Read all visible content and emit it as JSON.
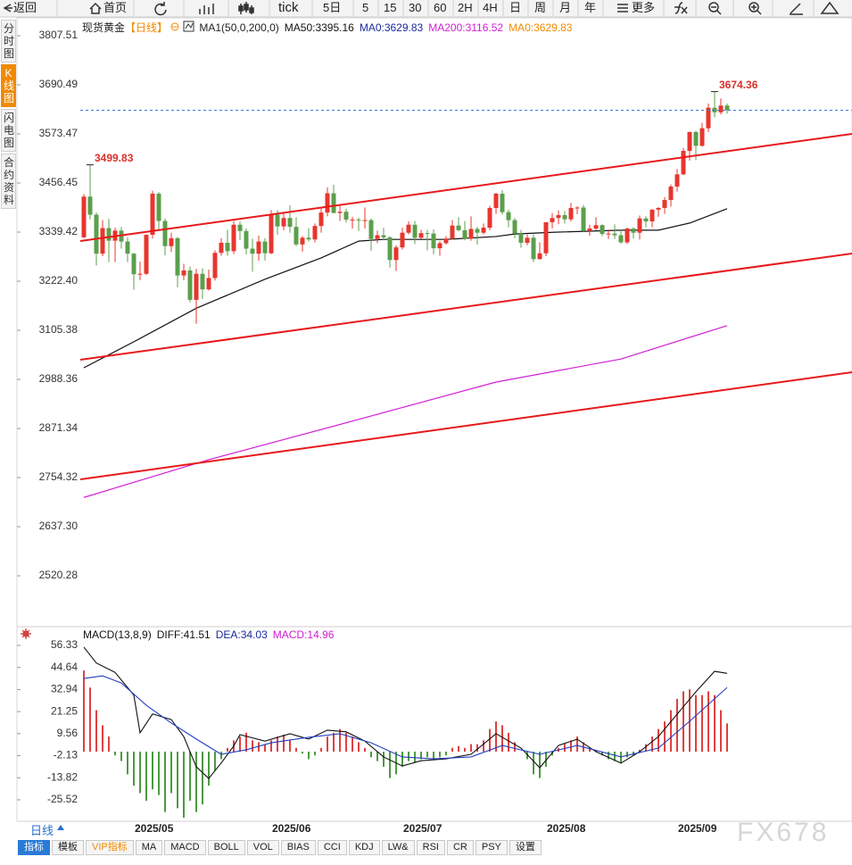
{
  "toolbar": [
    "返回",
    "首页",
    "tick",
    "5日",
    "5",
    "15",
    "30",
    "60",
    "2H",
    "4H",
    "日",
    "周",
    "月",
    "年",
    "更多"
  ],
  "sidebar": [
    "分时图",
    "K线图",
    "闪电图",
    "合约资料"
  ],
  "period_button": "日线",
  "bottom_tabs": [
    "指标",
    "模板",
    "VIP指标",
    "MA",
    "MACD",
    "BOLL",
    "VOL",
    "BIAS",
    "CCI",
    "KDJ",
    "LW&",
    "RSI",
    "CR",
    "PSY",
    "设置"
  ],
  "watermark": "FX678",
  "chart_data": [
    {
      "type": "candlestick",
      "title": "现货黄金",
      "subtitle": "【日线】",
      "legend": [
        {
          "label": "MA1(50,0,200,0)",
          "color": "#222222"
        },
        {
          "label": "MA50:3395.16",
          "color": "#111111"
        },
        {
          "label": "MA0:3629.83",
          "color": "#1a2a9a"
        },
        {
          "label": "MA200:3116.52",
          "color": "#d020d0"
        },
        {
          "label": "MA0:3629.83",
          "color": "#f08a00"
        }
      ],
      "categories": [
        null,
        null,
        null,
        null,
        null,
        null,
        null,
        null,
        "2025/05",
        null,
        null,
        null,
        null,
        null,
        null,
        null,
        null,
        null,
        null,
        null,
        null,
        null,
        null,
        null,
        null,
        null,
        null,
        null,
        null,
        null,
        "2025/06",
        null,
        null,
        null,
        null,
        null,
        null,
        null,
        null,
        null,
        null,
        null,
        null,
        null,
        null,
        null,
        null,
        null,
        null,
        null,
        null,
        "2025/07",
        null,
        null,
        null,
        null,
        null,
        null,
        null,
        null,
        null,
        null,
        null,
        null,
        null,
        null,
        null,
        null,
        null,
        null,
        null,
        null,
        null,
        null,
        "2025/08",
        null,
        null,
        null,
        null,
        null,
        null,
        null,
        null,
        null,
        null,
        null,
        null,
        null,
        null,
        null,
        null,
        null,
        null,
        null,
        null,
        "2025/09",
        null,
        null,
        null,
        null,
        null,
        null,
        null,
        null
      ],
      "candles": [
        [
          3327,
          3430,
          3325,
          3424
        ],
        [
          3424,
          3499.83,
          3370,
          3381
        ],
        [
          3381,
          3386,
          3260,
          3288
        ],
        [
          3288,
          3368,
          3282,
          3349
        ],
        [
          3349,
          3371,
          3268,
          3319
        ],
        [
          3319,
          3350,
          3268,
          3343
        ],
        [
          3343,
          3352,
          3300,
          3317
        ],
        [
          3317,
          3327,
          3268,
          3288
        ],
        [
          3288,
          3290,
          3202,
          3239
        ],
        [
          3239,
          3269,
          3225,
          3240
        ],
        [
          3240,
          3334,
          3237,
          3333
        ],
        [
          3333,
          3438,
          3324,
          3431
        ],
        [
          3431,
          3435,
          3346,
          3366
        ],
        [
          3366,
          3372,
          3284,
          3306
        ],
        [
          3306,
          3338,
          3292,
          3325
        ],
        [
          3325,
          3328,
          3208,
          3236
        ],
        [
          3236,
          3264,
          3225,
          3248
        ],
        [
          3248,
          3257,
          3172,
          3178
        ],
        [
          3178,
          3252,
          3121,
          3240
        ],
        [
          3240,
          3253,
          3180,
          3203
        ],
        [
          3203,
          3250,
          3200,
          3230
        ],
        [
          3230,
          3296,
          3224,
          3290
        ],
        [
          3290,
          3325,
          3283,
          3314
        ],
        [
          3314,
          3345,
          3283,
          3294
        ],
        [
          3294,
          3366,
          3287,
          3357
        ],
        [
          3357,
          3365,
          3320,
          3342
        ],
        [
          3342,
          3348,
          3286,
          3300
        ],
        [
          3300,
          3324,
          3245,
          3288
        ],
        [
          3288,
          3331,
          3271,
          3317
        ],
        [
          3317,
          3325,
          3272,
          3289
        ],
        [
          3289,
          3392,
          3287,
          3381
        ],
        [
          3381,
          3392,
          3333,
          3353
        ],
        [
          3353,
          3385,
          3344,
          3373
        ],
        [
          3373,
          3403,
          3338,
          3352
        ],
        [
          3352,
          3375,
          3306,
          3310
        ],
        [
          3310,
          3330,
          3293,
          3326
        ],
        [
          3326,
          3349,
          3317,
          3322
        ],
        [
          3322,
          3360,
          3315,
          3354
        ],
        [
          3354,
          3398,
          3338,
          3386
        ],
        [
          3386,
          3446,
          3377,
          3432
        ],
        [
          3432,
          3452,
          3384,
          3385
        ],
        [
          3385,
          3403,
          3366,
          3388
        ],
        [
          3388,
          3395,
          3362,
          3369
        ],
        [
          3369,
          3376,
          3348,
          3369
        ],
        [
          3369,
          3374,
          3342,
          3368
        ],
        [
          3368,
          3398,
          3348,
          3368
        ],
        [
          3368,
          3372,
          3295,
          3323
        ],
        [
          3323,
          3343,
          3313,
          3332
        ],
        [
          3332,
          3350,
          3320,
          3327
        ],
        [
          3327,
          3330,
          3255,
          3273
        ],
        [
          3273,
          3308,
          3247,
          3303
        ],
        [
          3303,
          3350,
          3298,
          3338
        ],
        [
          3338,
          3365,
          3334,
          3357
        ],
        [
          3357,
          3366,
          3311,
          3326
        ],
        [
          3326,
          3345,
          3323,
          3337
        ],
        [
          3337,
          3345,
          3296,
          3336
        ],
        [
          3336,
          3346,
          3287,
          3301
        ],
        [
          3301,
          3318,
          3283,
          3313
        ],
        [
          3313,
          3330,
          3310,
          3324
        ],
        [
          3324,
          3368,
          3322,
          3355
        ],
        [
          3355,
          3375,
          3341,
          3344
        ],
        [
          3344,
          3366,
          3320,
          3324
        ],
        [
          3324,
          3377,
          3319,
          3347
        ],
        [
          3347,
          3352,
          3310,
          3338
        ],
        [
          3338,
          3360,
          3334,
          3350
        ],
        [
          3350,
          3402,
          3344,
          3397
        ],
        [
          3397,
          3433,
          3383,
          3431
        ],
        [
          3431,
          3439,
          3381,
          3387
        ],
        [
          3387,
          3393,
          3351,
          3368
        ],
        [
          3368,
          3373,
          3325,
          3336
        ],
        [
          3336,
          3345,
          3302,
          3314
        ],
        [
          3314,
          3334,
          3308,
          3326
        ],
        [
          3326,
          3334,
          3268,
          3275
        ],
        [
          3275,
          3315,
          3274,
          3289
        ],
        [
          3289,
          3363,
          3282,
          3363
        ],
        [
          3363,
          3385,
          3348,
          3373
        ],
        [
          3373,
          3391,
          3358,
          3380
        ],
        [
          3380,
          3390,
          3360,
          3370
        ],
        [
          3370,
          3409,
          3365,
          3397
        ],
        [
          3397,
          3401,
          3382,
          3398
        ],
        [
          3398,
          3404,
          3341,
          3342
        ],
        [
          3342,
          3357,
          3331,
          3348
        ],
        [
          3348,
          3375,
          3344,
          3356
        ],
        [
          3356,
          3358,
          3330,
          3335
        ],
        [
          3335,
          3345,
          3323,
          3336
        ],
        [
          3336,
          3358,
          3323,
          3332
        ],
        [
          3332,
          3346,
          3312,
          3315
        ],
        [
          3315,
          3350,
          3311,
          3348
        ],
        [
          3348,
          3351,
          3324,
          3338
        ],
        [
          3338,
          3379,
          3322,
          3372
        ],
        [
          3372,
          3377,
          3351,
          3365
        ],
        [
          3365,
          3394,
          3351,
          3393
        ],
        [
          3393,
          3399,
          3376,
          3397
        ],
        [
          3397,
          3423,
          3383,
          3416
        ],
        [
          3416,
          3453,
          3400,
          3448
        ],
        [
          3448,
          3490,
          3436,
          3477
        ],
        [
          3477,
          3540,
          3475,
          3533
        ],
        [
          3533,
          3579,
          3510,
          3578
        ],
        [
          3578,
          3581,
          3511,
          3545
        ],
        [
          3545,
          3600,
          3543,
          3587
        ],
        [
          3587,
          3646,
          3578,
          3636
        ],
        [
          3636,
          3674.36,
          3613,
          3625
        ],
        [
          3625,
          3658,
          3620,
          3641
        ],
        [
          3641,
          3646,
          3622,
          3629.83
        ]
      ],
      "up_color": "#e8352e",
      "down_color": "#5b9f4c",
      "lines": [
        {
          "name": "MA50",
          "color": "#111111",
          "x": [
            0,
            8,
            18,
            29,
            38,
            44,
            48,
            58,
            66,
            69,
            75,
            86,
            92,
            97,
            103
          ],
          "values": [
            3016,
            3078,
            3158,
            3227,
            3278,
            3318,
            3322,
            3322,
            3329,
            3335,
            3339,
            3344,
            3344,
            3361,
            3395.16
          ]
        },
        {
          "name": "MA200",
          "color": "#d21fd6",
          "x": [
            0,
            20,
            44,
            66,
            86,
            103
          ],
          "values": [
            2707,
            2797,
            2893,
            2982,
            3037,
            3116.52
          ]
        }
      ],
      "trendlines": [
        {
          "color": "#e8191b",
          "x": [
            -0.57,
            123
          ],
          "values": [
            3318.2,
            3573.5
          ]
        },
        {
          "color": "#e8191b",
          "x": [
            -0.57,
            123
          ],
          "values": [
            3035.2,
            3288.4
          ]
        },
        {
          "color": "#e8191b",
          "x": [
            -0.57,
            123
          ],
          "values": [
            2750.1,
            3005.4
          ]
        }
      ],
      "price_line_color": "#3a78d8",
      "annotations": [
        "3674.36",
        "3499.83"
      ],
      "annotation_color": "#d8302a",
      "xlim": [
        -0.57,
        123
      ],
      "ylim": [
        2403.3,
        3850.1
      ],
      "yticks": [
        3807.51,
        3690.49,
        3573.47,
        3456.45,
        3339.42,
        {
          "value": 3222.4,
          "label": "3222.40"
        },
        3105.38,
        2988.36,
        2871.34,
        2754.32,
        {
          "value": 2637.3,
          "label": "2637.30"
        },
        2520.28
      ],
      "grid": false
    },
    {
      "type": "macd",
      "legend": [
        {
          "label": "MACD(13,8,9)",
          "color": "#111111"
        },
        {
          "label": "DIFF:41.51",
          "color": "#111111"
        },
        {
          "label": "DEA:34.03",
          "color": "#1a2a9a"
        },
        {
          "label": "MACD:14.96",
          "color": "#d020d0"
        }
      ],
      "lines": [
        {
          "name": "DIFF",
          "color": "#111111",
          "x": [
            0,
            2,
            5,
            8,
            9,
            11,
            14,
            16,
            18,
            20,
            22,
            24,
            25,
            29,
            33,
            36,
            39,
            42,
            45,
            48,
            51,
            54,
            58,
            62,
            66,
            70,
            73,
            76,
            79,
            82,
            86,
            89,
            92,
            95,
            98,
            101,
            103
          ],
          "values": [
            55.4,
            47,
            42,
            30,
            10,
            20,
            17,
            8,
            -8,
            -14.2,
            -6,
            3,
            9,
            5.6,
            9.5,
            6.7,
            11.4,
            10.5,
            5.6,
            -2.8,
            -7.6,
            -4.8,
            -3.8,
            -1.4,
            9.5,
            1.9,
            -8.5,
            3.3,
            6.6,
            0,
            -6.1,
            0,
            8,
            19.9,
            31.7,
            42.6,
            41.51
          ]
        },
        {
          "name": "DEA",
          "color": "#2040c0",
          "x": [
            0,
            3,
            6,
            10,
            14,
            18,
            22,
            26,
            30,
            36,
            41,
            46,
            51,
            56,
            62,
            67,
            73,
            79,
            86,
            92,
            97,
            103
          ],
          "values": [
            38.8,
            40.2,
            36.4,
            24.6,
            15.2,
            6.7,
            -1.4,
            1,
            4.7,
            7.6,
            9.5,
            4.7,
            -2.8,
            -3.8,
            -2.8,
            3.3,
            -1.4,
            3.3,
            -2.8,
            1.9,
            16.1,
            34.03
          ]
        }
      ],
      "histogram": [
        43,
        34,
        22,
        14,
        8,
        -2,
        -5,
        -12,
        -18,
        -22,
        -26,
        -20,
        -23,
        -32,
        -22,
        -30,
        -35,
        -26,
        -32,
        -28,
        -18,
        -10,
        -4,
        2,
        6,
        8,
        10,
        6,
        5,
        4,
        6,
        8,
        9,
        6,
        2,
        -1,
        -4,
        -2,
        2,
        8,
        10,
        12,
        10,
        8,
        5,
        2,
        -3,
        -5,
        -8,
        -14,
        -12,
        -8,
        -5,
        -6,
        -4,
        -3,
        -4,
        -3,
        -2,
        2,
        3,
        2,
        4,
        4,
        6,
        12,
        16,
        14,
        10,
        5,
        0,
        -4,
        -12,
        -14,
        -8,
        -2,
        2,
        4,
        6,
        8,
        5,
        2,
        1,
        -2,
        -4,
        -5,
        -6,
        -3,
        -2,
        1,
        4,
        8,
        12,
        16,
        22,
        28,
        32,
        33,
        30,
        30,
        32,
        30,
        22,
        14.96
      ],
      "up_color": "#e04040",
      "down_color": "#4c9a40",
      "xlim": [
        -0.57,
        123
      ],
      "ylim": [
        -36.9,
        65.8
      ],
      "yticks": [
        56.33,
        44.64,
        32.94,
        21.25,
        9.56,
        -2.13,
        -13.82,
        -25.52
      ],
      "grid": false
    }
  ]
}
